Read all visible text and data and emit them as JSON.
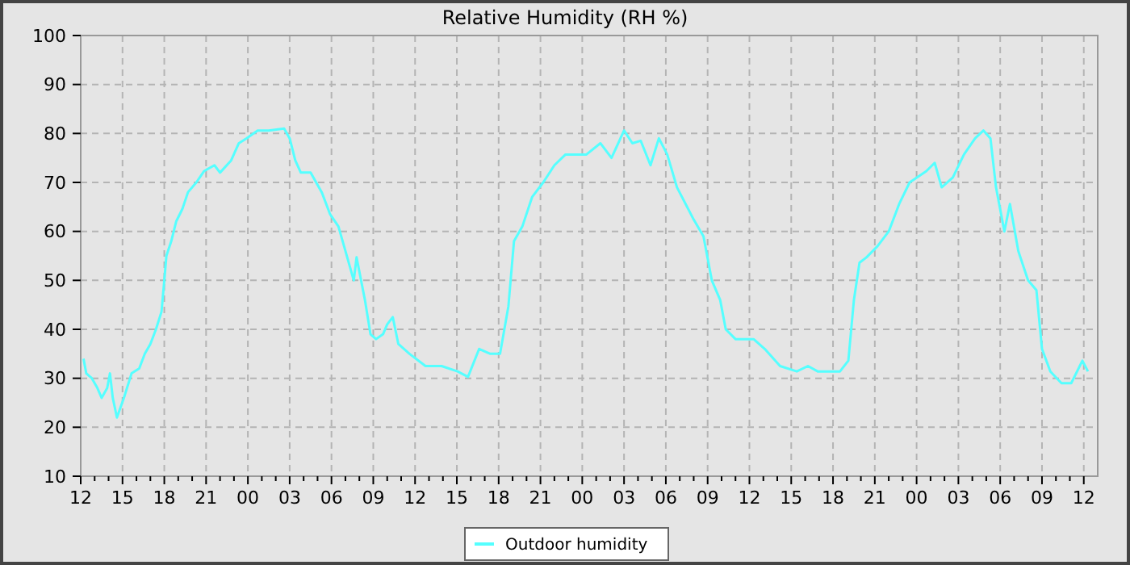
{
  "chart_data": {
    "type": "line",
    "title": "Relative Humidity (RH %)",
    "legend": "bottom",
    "grid": true,
    "marker": "none",
    "line_style": "solid",
    "xlim": [
      12,
      85
    ],
    "ylim": [
      10,
      100
    ],
    "yticks": [
      10,
      20,
      30,
      40,
      50,
      60,
      70,
      80,
      90,
      100
    ],
    "xticks": [
      {
        "value": 12,
        "label": "12"
      },
      {
        "value": 13,
        "label": null
      },
      {
        "value": 14,
        "label": null
      },
      {
        "value": 15,
        "label": "15"
      },
      {
        "value": 16,
        "label": null
      },
      {
        "value": 17,
        "label": null
      },
      {
        "value": 18,
        "label": "18"
      },
      {
        "value": 19,
        "label": null
      },
      {
        "value": 20,
        "label": null
      },
      {
        "value": 21,
        "label": "21"
      },
      {
        "value": 22,
        "label": null
      },
      {
        "value": 23,
        "label": null
      },
      {
        "value": 24,
        "label": "00"
      },
      {
        "value": 25,
        "label": null
      },
      {
        "value": 26,
        "label": null
      },
      {
        "value": 27,
        "label": "03"
      },
      {
        "value": 28,
        "label": null
      },
      {
        "value": 29,
        "label": null
      },
      {
        "value": 30,
        "label": "06"
      },
      {
        "value": 31,
        "label": null
      },
      {
        "value": 32,
        "label": null
      },
      {
        "value": 33,
        "label": "09"
      },
      {
        "value": 34,
        "label": null
      },
      {
        "value": 35,
        "label": null
      },
      {
        "value": 36,
        "label": "12"
      },
      {
        "value": 37,
        "label": null
      },
      {
        "value": 38,
        "label": null
      },
      {
        "value": 39,
        "label": "15"
      },
      {
        "value": 40,
        "label": null
      },
      {
        "value": 41,
        "label": null
      },
      {
        "value": 42,
        "label": "18"
      },
      {
        "value": 43,
        "label": null
      },
      {
        "value": 44,
        "label": null
      },
      {
        "value": 45,
        "label": "21"
      },
      {
        "value": 46,
        "label": null
      },
      {
        "value": 47,
        "label": null
      },
      {
        "value": 48,
        "label": "00"
      },
      {
        "value": 49,
        "label": null
      },
      {
        "value": 50,
        "label": null
      },
      {
        "value": 51,
        "label": "03"
      },
      {
        "value": 52,
        "label": null
      },
      {
        "value": 53,
        "label": null
      },
      {
        "value": 54,
        "label": "06"
      },
      {
        "value": 55,
        "label": null
      },
      {
        "value": 56,
        "label": null
      },
      {
        "value": 57,
        "label": "09"
      },
      {
        "value": 58,
        "label": null
      },
      {
        "value": 59,
        "label": null
      },
      {
        "value": 60,
        "label": "12"
      },
      {
        "value": 61,
        "label": null
      },
      {
        "value": 62,
        "label": null
      },
      {
        "value": 63,
        "label": "15"
      },
      {
        "value": 64,
        "label": null
      },
      {
        "value": 65,
        "label": null
      },
      {
        "value": 66,
        "label": "18"
      },
      {
        "value": 67,
        "label": null
      },
      {
        "value": 68,
        "label": null
      },
      {
        "value": 69,
        "label": "21"
      },
      {
        "value": 70,
        "label": null
      },
      {
        "value": 71,
        "label": null
      },
      {
        "value": 72,
        "label": "00"
      },
      {
        "value": 73,
        "label": null
      },
      {
        "value": 74,
        "label": null
      },
      {
        "value": 75,
        "label": "03"
      },
      {
        "value": 76,
        "label": null
      },
      {
        "value": 77,
        "label": null
      },
      {
        "value": 78,
        "label": "06"
      },
      {
        "value": 79,
        "label": null
      },
      {
        "value": 80,
        "label": null
      },
      {
        "value": 81,
        "label": "09"
      },
      {
        "value": 82,
        "label": null
      },
      {
        "value": 83,
        "label": null
      },
      {
        "value": 84,
        "label": "12"
      }
    ],
    "series": [
      {
        "name": "Outdoor humidity",
        "color": "#55ffff",
        "x": [
          12.2,
          12.4,
          12.8,
          13.2,
          13.5,
          13.9,
          14.1,
          14.3,
          14.6,
          15.1,
          15.65,
          16.2,
          16.6,
          17.0,
          17.4,
          17.8,
          18.0,
          18.15,
          18.5,
          18.85,
          19.3,
          19.7,
          20.3,
          20.85,
          21.6,
          22.0,
          22.8,
          23.35,
          23.9,
          24.7,
          25.5,
          26.6,
          27.0,
          27.4,
          27.8,
          28.5,
          29.3,
          29.9,
          30.5,
          31.0,
          31.6,
          31.8,
          32.4,
          32.8,
          33.2,
          33.7,
          34.0,
          34.4,
          34.8,
          35.6,
          36.75,
          37.9,
          39.05,
          39.8,
          40.6,
          41.4,
          42.1,
          42.7,
          43.1,
          43.7,
          44.4,
          45.2,
          46.0,
          46.8,
          48.3,
          49.3,
          50.1,
          51.0,
          51.6,
          52.2,
          52.9,
          53.5,
          54.1,
          54.8,
          56.0,
          56.7,
          57.3,
          57.9,
          58.3,
          59.0,
          59.5,
          60.3,
          61.1,
          62.2,
          63.4,
          64.2,
          64.9,
          65.7,
          66.5,
          67.1,
          67.5,
          67.9,
          68.4,
          69.2,
          70.0,
          70.75,
          71.5,
          72.7,
          73.3,
          73.8,
          74.6,
          75.4,
          76.2,
          76.8,
          77.3,
          77.7,
          78.3,
          78.7,
          79.3,
          80.0,
          80.6,
          81.0,
          81.6,
          82.4,
          83.1,
          83.9,
          84.3
        ],
        "values": [
          34,
          31,
          30,
          28,
          26,
          28,
          31,
          26,
          22,
          26,
          31,
          32,
          35,
          37,
          40,
          43.6,
          50,
          55,
          58,
          62,
          64.6,
          68,
          70,
          72.3,
          73.5,
          72,
          74.5,
          78,
          79,
          80.6,
          80.6,
          81,
          79,
          74.5,
          72,
          72,
          68,
          63.5,
          61,
          56,
          50,
          54.7,
          46,
          39,
          38,
          39,
          41,
          42.5,
          37,
          35,
          32.5,
          32.5,
          31.4,
          30.3,
          36,
          35,
          35,
          44.7,
          58,
          61,
          67,
          70,
          73.5,
          75.7,
          75.7,
          78,
          75,
          80.6,
          78,
          78.5,
          73.5,
          79,
          75.7,
          69,
          62.4,
          59,
          50,
          46,
          40,
          38,
          38,
          38,
          36,
          32.5,
          31.4,
          32.5,
          31.4,
          31.4,
          31.4,
          33.6,
          46,
          53.6,
          54.7,
          57,
          60,
          65.6,
          70,
          72.3,
          74,
          69,
          71,
          75.7,
          79,
          80.6,
          79,
          69,
          60,
          65.6,
          56,
          50,
          48,
          36,
          31.4,
          29,
          29,
          33.6,
          31.4
        ]
      }
    ]
  }
}
